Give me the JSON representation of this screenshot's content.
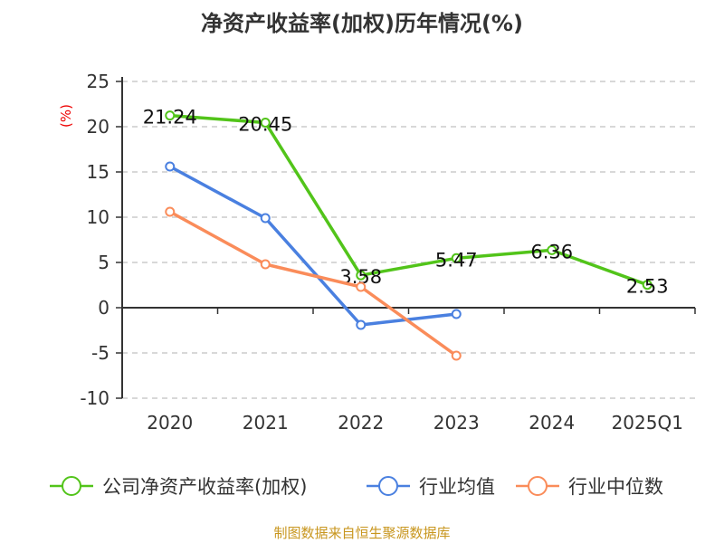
{
  "chart_data": {
    "type": "line",
    "title": "净资产收益率(加权)历年情况(%)",
    "ylabel": "(%)",
    "xlabel": "",
    "categories": [
      "2020",
      "2021",
      "2022",
      "2023",
      "2024",
      "2025Q1"
    ],
    "ylim": [
      -10,
      25
    ],
    "yticks": [
      25,
      20,
      15,
      10,
      5,
      0,
      -5,
      -10
    ],
    "grid": true,
    "legend_position": "bottom",
    "series": [
      {
        "name": "公司净资产收益率(加权)",
        "color": "#52c41a",
        "values": [
          21.24,
          20.45,
          3.58,
          5.47,
          6.36,
          2.53
        ],
        "labels": [
          "21.24",
          "20.45",
          "3.58",
          "5.47",
          "6.36",
          "2.53"
        ]
      },
      {
        "name": "行业均值",
        "color": "#4a80e0",
        "values": [
          15.6,
          9.9,
          -1.9,
          -0.7,
          null,
          null
        ]
      },
      {
        "name": "行业中位数",
        "color": "#fa8c5a",
        "values": [
          10.6,
          4.8,
          2.3,
          -5.3,
          null,
          null
        ]
      }
    ]
  },
  "source": "制图数据来自恒生聚源数据库"
}
